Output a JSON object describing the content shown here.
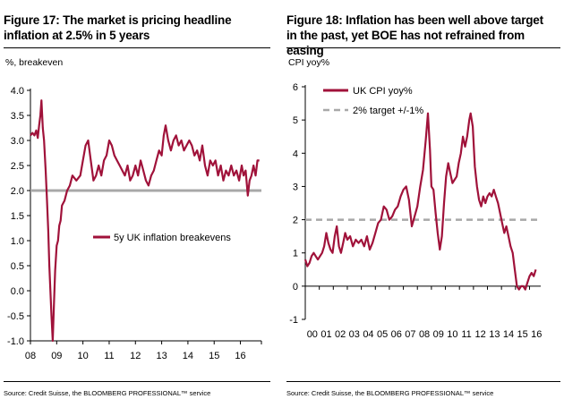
{
  "colors": {
    "series": "#a0123a",
    "target": "#a8a8a8",
    "axis": "#000000"
  },
  "left": {
    "title": "Figure 17: The market is pricing headline inflation at 2.5% in 5 years",
    "unit": "%, breakeven",
    "source": "Source: Credit Suisse, the BLOOMBERG PROFESSIONAL™ service"
  },
  "right": {
    "title": "Figure 18: Inflation has been well above target in the past, yet BOE has not refrained from easing",
    "unit": "CPI yoy%",
    "source": "Source: Credit Suisse, the BLOOMBERG PROFESSIONAL™ service"
  },
  "chart_data": [
    {
      "type": "line",
      "title": "Figure 17: The market is pricing headline inflation at 2.5% in 5 years",
      "ylabel": "%, breakeven",
      "x_ticks": [
        "08",
        "09",
        "10",
        "11",
        "12",
        "13",
        "14",
        "15",
        "16"
      ],
      "y_ticks": [
        "-1.0",
        "-0.5",
        "0.0",
        "0.5",
        "1.0",
        "1.5",
        "2.0",
        "2.5",
        "3.0",
        "3.5",
        "4.0"
      ],
      "xlim": [
        2008.0,
        2016.8
      ],
      "ylim": [
        -1.0,
        4.0
      ],
      "hline": {
        "value": 2.0
      },
      "legend": {
        "position": "center-right",
        "entries": [
          "5y UK inflation breakevens"
        ]
      },
      "series": [
        {
          "name": "5y UK inflation breakevens",
          "x": [
            2008.0,
            2008.08,
            2008.15,
            2008.22,
            2008.28,
            2008.33,
            2008.38,
            2008.42,
            2008.47,
            2008.52,
            2008.58,
            2008.63,
            2008.68,
            2008.72,
            2008.76,
            2008.8,
            2008.85,
            2008.9,
            2008.94,
            2009.0,
            2009.05,
            2009.1,
            2009.15,
            2009.2,
            2009.3,
            2009.4,
            2009.5,
            2009.6,
            2009.75,
            2009.9,
            2010.0,
            2010.1,
            2010.2,
            2010.3,
            2010.4,
            2010.5,
            2010.6,
            2010.7,
            2010.8,
            2010.9,
            2011.0,
            2011.1,
            2011.2,
            2011.3,
            2011.4,
            2011.5,
            2011.6,
            2011.7,
            2011.8,
            2011.9,
            2012.0,
            2012.1,
            2012.2,
            2012.3,
            2012.4,
            2012.5,
            2012.6,
            2012.7,
            2012.8,
            2012.9,
            2013.0,
            2013.08,
            2013.15,
            2013.25,
            2013.35,
            2013.45,
            2013.55,
            2013.65,
            2013.75,
            2013.85,
            2013.95,
            2014.05,
            2014.15,
            2014.25,
            2014.35,
            2014.45,
            2014.55,
            2014.65,
            2014.75,
            2014.85,
            2014.95,
            2015.05,
            2015.15,
            2015.25,
            2015.35,
            2015.45,
            2015.55,
            2015.65,
            2015.75,
            2015.85,
            2015.95,
            2016.05,
            2016.12,
            2016.2,
            2016.28,
            2016.35,
            2016.42,
            2016.5,
            2016.58,
            2016.65,
            2016.72
          ],
          "values": [
            3.1,
            3.15,
            3.1,
            3.2,
            3.05,
            3.3,
            3.5,
            3.8,
            3.25,
            3.0,
            2.4,
            1.8,
            1.2,
            0.5,
            0.0,
            -0.5,
            -1.0,
            -0.2,
            0.4,
            0.9,
            1.0,
            1.3,
            1.4,
            1.7,
            1.8,
            2.0,
            2.1,
            2.3,
            2.2,
            2.3,
            2.6,
            2.9,
            3.0,
            2.6,
            2.2,
            2.3,
            2.5,
            2.3,
            2.6,
            2.7,
            3.0,
            2.9,
            2.7,
            2.6,
            2.5,
            2.4,
            2.3,
            2.5,
            2.2,
            2.3,
            2.5,
            2.3,
            2.6,
            2.4,
            2.2,
            2.1,
            2.3,
            2.4,
            2.6,
            2.8,
            2.7,
            3.1,
            3.3,
            3.0,
            2.8,
            3.0,
            3.1,
            2.9,
            3.0,
            2.8,
            2.9,
            3.0,
            2.9,
            2.7,
            2.8,
            2.6,
            2.9,
            2.5,
            2.3,
            2.6,
            2.5,
            2.6,
            2.3,
            2.5,
            2.2,
            2.4,
            2.3,
            2.5,
            2.3,
            2.4,
            2.2,
            2.5,
            2.3,
            2.4,
            1.9,
            2.2,
            2.3,
            2.5,
            2.3,
            2.6,
            2.6
          ]
        }
      ]
    },
    {
      "type": "line",
      "title": "Figure 18: Inflation has been well above target in the past, yet BOE has not refrained from easing",
      "ylabel": "CPI yoy%",
      "x_ticks": [
        "00",
        "01",
        "02",
        "03",
        "04",
        "05",
        "06",
        "07",
        "08",
        "09",
        "10",
        "11",
        "12",
        "13",
        "14",
        "15",
        "16"
      ],
      "y_ticks": [
        "-1",
        "0",
        "1",
        "2",
        "3",
        "4",
        "5",
        "6"
      ],
      "xlim": [
        2000.0,
        2016.8
      ],
      "ylim": [
        -1.0,
        6.0
      ],
      "legend": {
        "position": "top-left",
        "entries": [
          "UK CPI yoy%",
          "2% target +/-1%"
        ]
      },
      "series": [
        {
          "name": "UK CPI yoy%",
          "x": [
            2000.0,
            2000.15,
            2000.3,
            2000.45,
            2000.6,
            2000.75,
            2000.9,
            2001.05,
            2001.2,
            2001.35,
            2001.5,
            2001.65,
            2001.8,
            2001.95,
            2002.1,
            2002.25,
            2002.4,
            2002.55,
            2002.7,
            2002.85,
            2003.0,
            2003.2,
            2003.4,
            2003.6,
            2003.8,
            2004.0,
            2004.2,
            2004.4,
            2004.6,
            2004.8,
            2005.0,
            2005.2,
            2005.4,
            2005.6,
            2005.8,
            2006.0,
            2006.2,
            2006.4,
            2006.6,
            2006.8,
            2007.0,
            2007.2,
            2007.4,
            2007.6,
            2007.8,
            2008.0,
            2008.2,
            2008.4,
            2008.6,
            2008.75,
            2008.9,
            2009.0,
            2009.15,
            2009.3,
            2009.45,
            2009.6,
            2009.75,
            2009.9,
            2010.05,
            2010.2,
            2010.35,
            2010.5,
            2010.65,
            2010.8,
            2010.95,
            2011.1,
            2011.25,
            2011.4,
            2011.55,
            2011.7,
            2011.8,
            2011.95,
            2012.1,
            2012.25,
            2012.4,
            2012.55,
            2012.7,
            2012.85,
            2013.0,
            2013.15,
            2013.3,
            2013.45,
            2013.6,
            2013.75,
            2013.9,
            2014.05,
            2014.2,
            2014.35,
            2014.5,
            2014.65,
            2014.8,
            2014.95,
            2015.1,
            2015.25,
            2015.4,
            2015.55,
            2015.7,
            2015.85,
            2016.0,
            2016.15,
            2016.3,
            2016.45
          ],
          "values": [
            0.8,
            0.6,
            0.7,
            0.9,
            1.0,
            0.9,
            0.8,
            0.9,
            1.0,
            1.2,
            1.6,
            1.3,
            1.1,
            1.0,
            1.5,
            1.8,
            1.2,
            1.0,
            1.3,
            1.6,
            1.4,
            1.5,
            1.2,
            1.4,
            1.3,
            1.4,
            1.2,
            1.5,
            1.1,
            1.3,
            1.6,
            1.9,
            2.0,
            2.4,
            2.3,
            2.0,
            2.1,
            2.3,
            2.4,
            2.7,
            2.9,
            3.0,
            2.6,
            1.8,
            2.1,
            2.4,
            3.0,
            3.5,
            4.4,
            5.2,
            4.1,
            3.0,
            2.9,
            2.2,
            1.6,
            1.1,
            1.5,
            2.5,
            3.3,
            3.7,
            3.4,
            3.1,
            3.2,
            3.3,
            3.7,
            4.0,
            4.5,
            4.2,
            4.5,
            5.0,
            5.2,
            4.8,
            3.6,
            3.0,
            2.6,
            2.4,
            2.7,
            2.5,
            2.7,
            2.8,
            2.7,
            2.9,
            2.7,
            2.5,
            2.2,
            1.9,
            1.6,
            1.8,
            1.5,
            1.2,
            1.0,
            0.5,
            0.0,
            -0.1,
            0.0,
            0.0,
            -0.1,
            0.1,
            0.3,
            0.4,
            0.3,
            0.5
          ]
        },
        {
          "name": "2% target +/-1%",
          "x": [
            2000.0,
            2016.8
          ],
          "values": [
            2.0,
            2.0
          ]
        }
      ]
    }
  ]
}
